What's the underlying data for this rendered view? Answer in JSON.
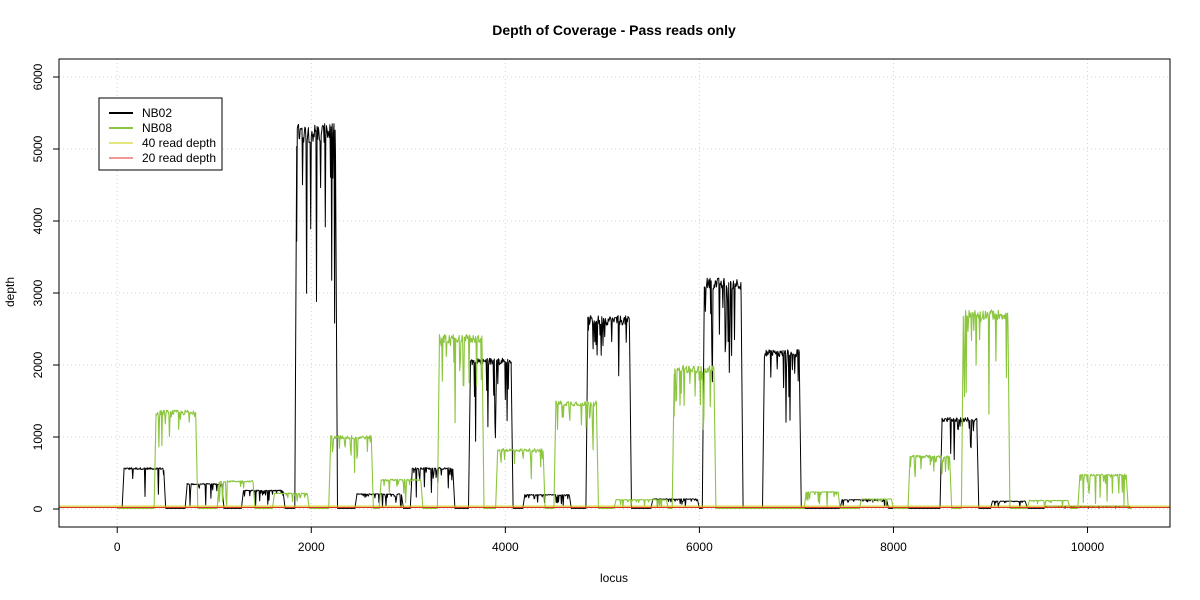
{
  "chart_data": {
    "type": "line",
    "title": "Depth of Coverage - Pass reads only",
    "xlabel": "locus",
    "ylabel": "depth",
    "xlim": [
      -600,
      10850
    ],
    "ylim": [
      -250,
      6250
    ],
    "x_ticks": [
      0,
      2000,
      4000,
      6000,
      8000,
      10000
    ],
    "x_tick_labels": [
      "0",
      "2000",
      "4000",
      "6000",
      "8000",
      "10000"
    ],
    "y_ticks": [
      0,
      1000,
      2000,
      3000,
      4000,
      5000,
      6000
    ],
    "y_tick_labels": [
      "0",
      "1000",
      "2000",
      "3000",
      "4000",
      "5000",
      "6000"
    ],
    "grid": true,
    "legend_position": "top-left",
    "legend": [
      {
        "label": "NB02",
        "color": "#000000"
      },
      {
        "label": "NB08",
        "color": "#8cc63f"
      },
      {
        "label": "40 read depth",
        "color": "#c8c800"
      },
      {
        "label": "20 read depth",
        "color": "#e0302a"
      }
    ],
    "series": [
      {
        "name": "NB02",
        "color": "#000000",
        "segments": [
          {
            "start": 50,
            "end": 500,
            "depth": 570
          },
          {
            "start": 700,
            "end": 1100,
            "depth": 350
          },
          {
            "start": 1280,
            "end": 1730,
            "depth": 260
          },
          {
            "start": 1830,
            "end": 2270,
            "depth": 5300
          },
          {
            "start": 2450,
            "end": 2950,
            "depth": 210
          },
          {
            "start": 3020,
            "end": 3480,
            "depth": 570
          },
          {
            "start": 3620,
            "end": 4080,
            "depth": 2080
          },
          {
            "start": 4180,
            "end": 4680,
            "depth": 200
          },
          {
            "start": 4830,
            "end": 5300,
            "depth": 2660
          },
          {
            "start": 5500,
            "end": 6000,
            "depth": 140
          },
          {
            "start": 6030,
            "end": 6450,
            "depth": 3180
          },
          {
            "start": 6650,
            "end": 7050,
            "depth": 2190
          },
          {
            "start": 7450,
            "end": 7950,
            "depth": 130
          },
          {
            "start": 8480,
            "end": 8880,
            "depth": 1260
          },
          {
            "start": 9000,
            "end": 9380,
            "depth": 110
          },
          {
            "start": 9550,
            "end": 10450,
            "depth": 40
          }
        ]
      },
      {
        "name": "NB08",
        "color": "#8cc63f",
        "segments": [
          {
            "start": 380,
            "end": 830,
            "depth": 1360
          },
          {
            "start": 1030,
            "end": 1420,
            "depth": 390
          },
          {
            "start": 1600,
            "end": 1980,
            "depth": 220
          },
          {
            "start": 2180,
            "end": 2640,
            "depth": 1010
          },
          {
            "start": 2700,
            "end": 3150,
            "depth": 410
          },
          {
            "start": 3300,
            "end": 3780,
            "depth": 2400
          },
          {
            "start": 3900,
            "end": 4410,
            "depth": 830
          },
          {
            "start": 4500,
            "end": 4960,
            "depth": 1490
          },
          {
            "start": 5120,
            "end": 5680,
            "depth": 130
          },
          {
            "start": 5720,
            "end": 6170,
            "depth": 1970
          },
          {
            "start": 7080,
            "end": 7450,
            "depth": 240
          },
          {
            "start": 7650,
            "end": 8000,
            "depth": 140
          },
          {
            "start": 8150,
            "end": 8600,
            "depth": 740
          },
          {
            "start": 8700,
            "end": 9200,
            "depth": 2740
          },
          {
            "start": 9380,
            "end": 9820,
            "depth": 120
          },
          {
            "start": 9900,
            "end": 10420,
            "depth": 480
          }
        ]
      }
    ],
    "thresholds": [
      {
        "name": "40 read depth",
        "y": 40,
        "color": "#c8c800"
      },
      {
        "name": "20 read depth",
        "y": 20,
        "color": "#e0302a"
      }
    ]
  }
}
